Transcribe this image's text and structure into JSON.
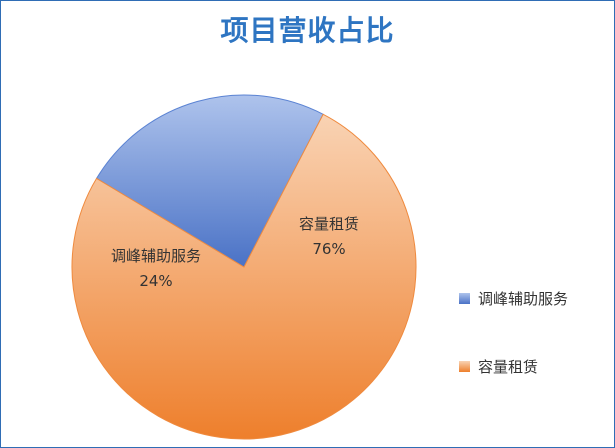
{
  "chart_data": {
    "type": "pie",
    "title": "项目营收占比",
    "slices": [
      {
        "label": "调峰辅助服务",
        "value": 24,
        "value_label": "24%",
        "color": "#5b83d3",
        "gradient": [
          "#aec3ec",
          "#4a72c6"
        ]
      },
      {
        "label": "容量租赁",
        "value": 76,
        "value_label": "76%",
        "color": "#ef8a3e",
        "gradient": [
          "#f9d3b4",
          "#ee7f2c"
        ]
      }
    ],
    "legend_position": "right"
  }
}
